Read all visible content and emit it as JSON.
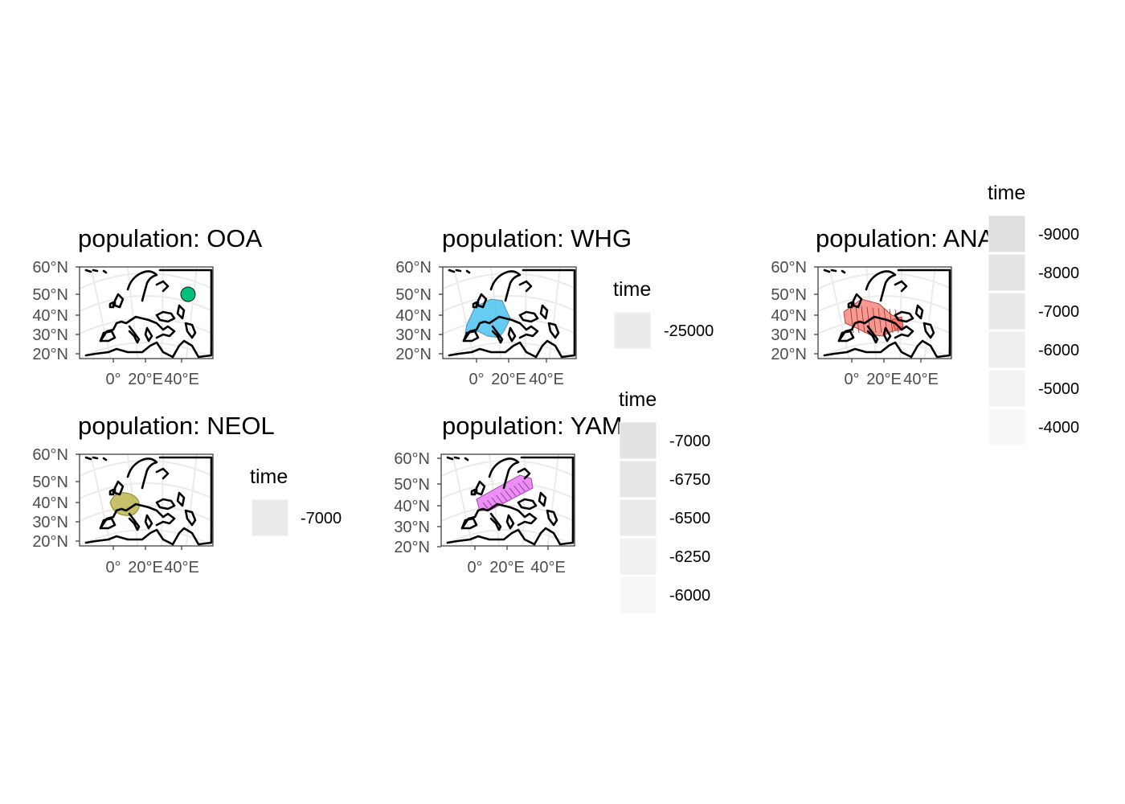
{
  "panels": [
    {
      "id": "ooa",
      "title": "population: OOA",
      "y_ticks": [
        "60°N",
        "50°N",
        "40°N",
        "30°N",
        "20°N"
      ],
      "x_ticks": [
        "0°",
        "20°E",
        "40°E"
      ],
      "fill": "#00BF7D"
    },
    {
      "id": "whg",
      "title": "population: WHG",
      "y_ticks": [
        "60°N",
        "50°N",
        "40°N",
        "30°N",
        "20°N"
      ],
      "x_ticks": [
        "0°",
        "20°E",
        "40°E"
      ],
      "fill": "#4CC3F0"
    },
    {
      "id": "ana",
      "title": "population: ANA",
      "y_ticks": [
        "60°N",
        "50°N",
        "40°N",
        "30°N",
        "20°N"
      ],
      "x_ticks": [
        "0°",
        "20°E",
        "40°E"
      ],
      "fill": "#F8766D"
    },
    {
      "id": "neol",
      "title": "population: NEOL",
      "y_ticks": [
        "60°N",
        "50°N",
        "40°N",
        "30°N",
        "20°N"
      ],
      "x_ticks": [
        "0°",
        "20°E",
        "40°E"
      ],
      "fill": "#B9B244"
    },
    {
      "id": "yam",
      "title": "population: YAM",
      "y_ticks": [
        "60°N",
        "50°N",
        "40°N",
        "30°N",
        "20°N"
      ],
      "x_ticks": [
        "0°",
        "20°E",
        "40°E"
      ],
      "fill": "#E76BF3"
    }
  ],
  "legends": [
    {
      "id": "whg",
      "title": "time",
      "labels": [
        "-25000"
      ]
    },
    {
      "id": "yam",
      "title": "time",
      "labels": [
        "-7000",
        "-6750",
        "-6500",
        "-6250",
        "-6000"
      ]
    },
    {
      "id": "ana",
      "title": "time",
      "labels": [
        "-9000",
        "-8000",
        "-7000",
        "-6000",
        "-5000",
        "-4000"
      ]
    },
    {
      "id": "neol",
      "title": "time",
      "labels": [
        "-7000"
      ]
    }
  ],
  "chart_data": {
    "type": "map",
    "facet": "population",
    "legend_variable": "time",
    "populations": [
      {
        "name": "OOA",
        "times": [],
        "color": "#00BF7D",
        "region": "point near 45°E, 50°N"
      },
      {
        "name": "WHG",
        "times": [
          -25000
        ],
        "color": "#4CC3F0",
        "region": "western and central Europe"
      },
      {
        "name": "ANA",
        "times": [
          -9000,
          -8000,
          -7000,
          -6000,
          -5000,
          -4000
        ],
        "color": "#F8766D",
        "region": "Anatolia to central Europe"
      },
      {
        "name": "NEOL",
        "times": [
          -7000
        ],
        "color": "#B9B244",
        "region": "central Europe"
      },
      {
        "name": "YAM",
        "times": [
          -7000,
          -6750,
          -6500,
          -6250,
          -6000
        ],
        "color": "#E76BF3",
        "region": "Pontic steppe to central Europe"
      }
    ]
  }
}
